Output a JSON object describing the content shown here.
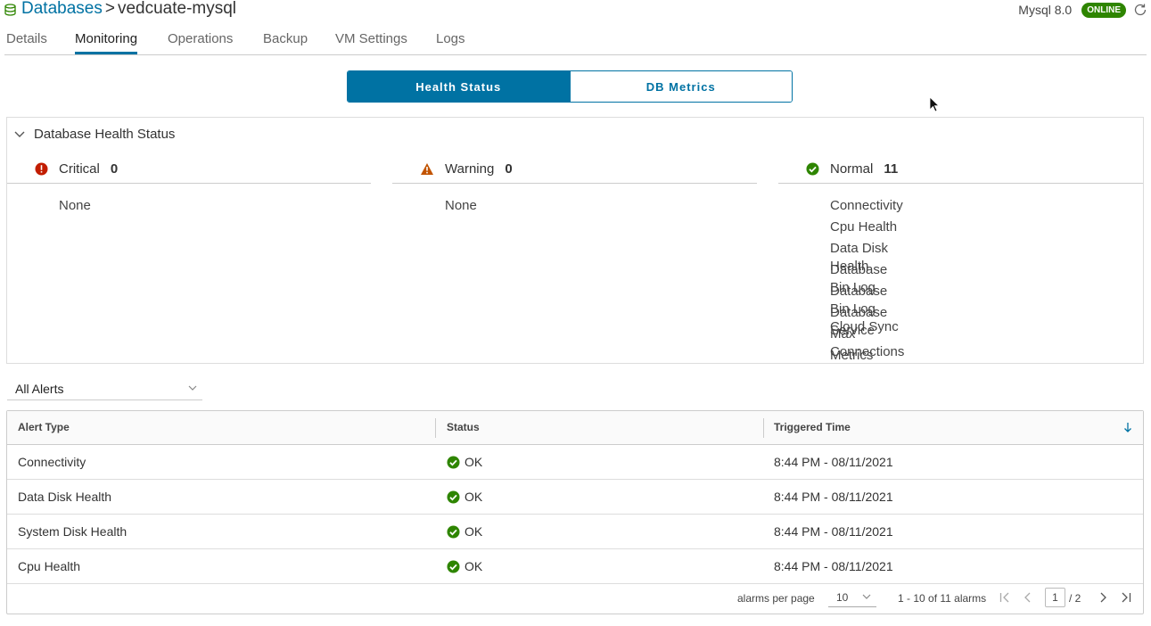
{
  "header": {
    "breadcrumb_root": "Databases",
    "breadcrumb_sep": ">",
    "db_name": "vedcuate-mysql",
    "version": "Mysql 8.0",
    "status_badge": "ONLINE"
  },
  "tabs": [
    {
      "label": "Details"
    },
    {
      "label": "Monitoring"
    },
    {
      "label": "Operations"
    },
    {
      "label": "Backup"
    },
    {
      "label": "VM Settings"
    },
    {
      "label": "Logs"
    }
  ],
  "toggle": {
    "health": "Health Status",
    "metrics": "DB Metrics"
  },
  "health": {
    "title": "Database Health Status",
    "critical": {
      "label": "Critical",
      "count": "0",
      "items": [
        "None"
      ]
    },
    "warning": {
      "label": "Warning",
      "count": "0",
      "items": [
        "None"
      ]
    },
    "normal": {
      "label": "Normal",
      "count": "11",
      "items": [
        "Connectivity",
        "Cpu Health",
        "Data Disk Health",
        "Database Bin Log",
        "Database Bin Log Cloud Sync",
        "Database Service",
        "Max Connections",
        "Metrics"
      ]
    }
  },
  "filter": {
    "selected": "All Alerts"
  },
  "table": {
    "columns": [
      "Alert Type",
      "Status",
      "Triggered Time"
    ],
    "rows": [
      {
        "type": "Connectivity",
        "status": "OK",
        "time": "8:44 PM - 08/11/2021"
      },
      {
        "type": "Data Disk Health",
        "status": "OK",
        "time": "8:44 PM - 08/11/2021"
      },
      {
        "type": "System Disk Health",
        "status": "OK",
        "time": "8:44 PM - 08/11/2021"
      },
      {
        "type": "Cpu Health",
        "status": "OK",
        "time": "8:44 PM - 08/11/2021"
      }
    ]
  },
  "pagination": {
    "per_page_label": "alarms per page",
    "per_page": "10",
    "range": "1 - 10 of 11 alarms",
    "page": "1",
    "total": "/ 2"
  },
  "colors": {
    "accent": "#0072a3",
    "ok": "#2e8500",
    "critical": "#c21d00",
    "warning": "#c25400"
  }
}
